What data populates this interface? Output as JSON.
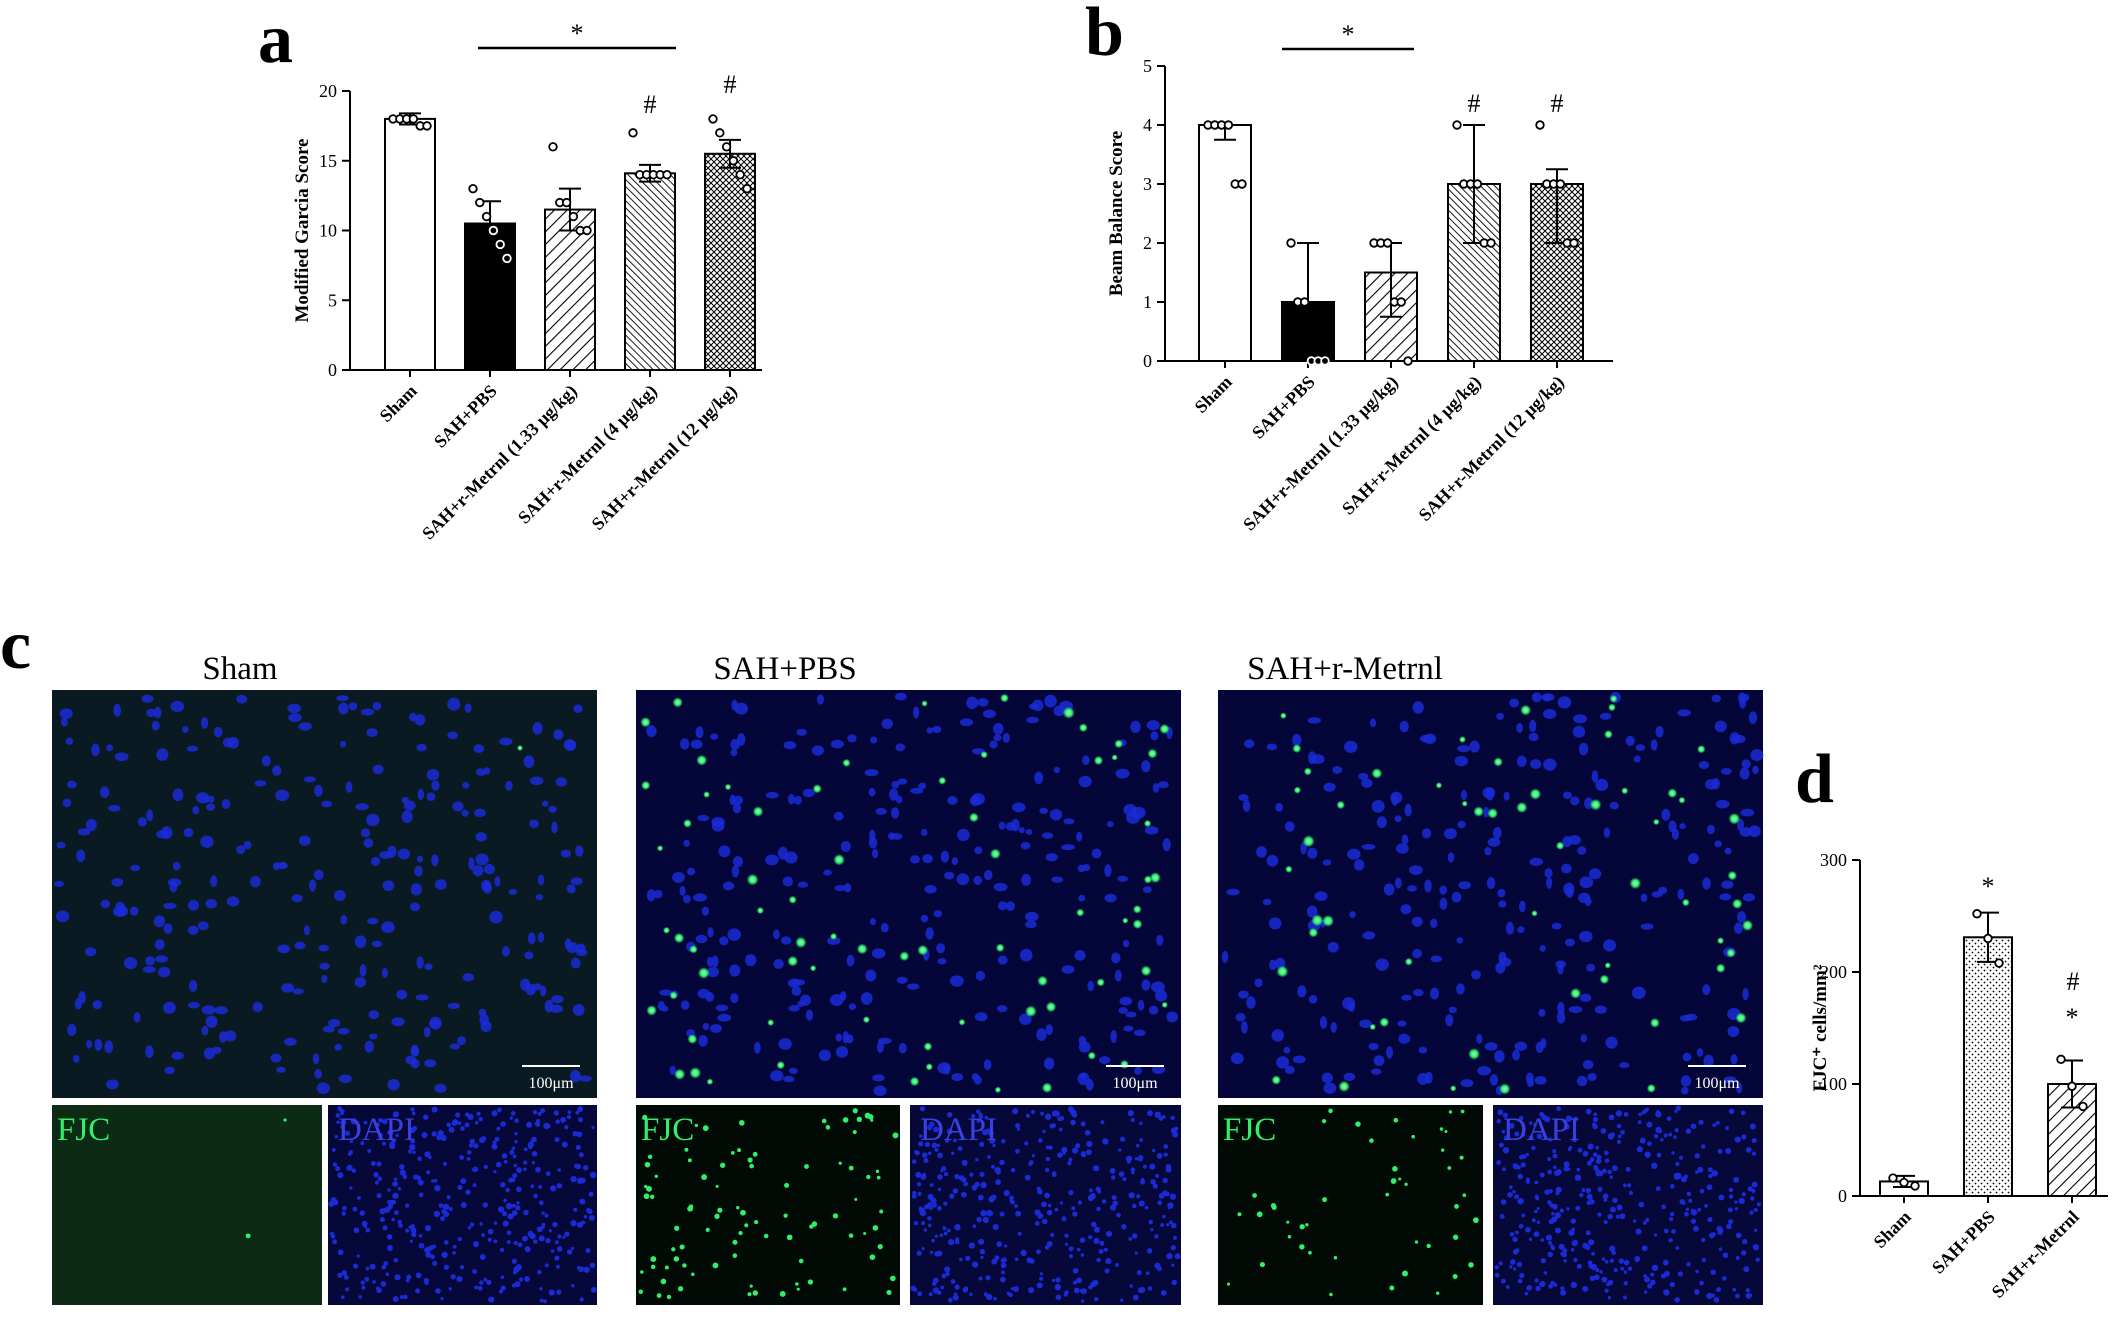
{
  "panels": {
    "a": "a",
    "b": "b",
    "c": "c",
    "d": "d"
  },
  "images": {
    "titles": [
      "Sham",
      "SAH+PBS",
      "SAH+r-Metrnl"
    ],
    "fjc_label": "FJC",
    "dapi_label": "DAPI",
    "scale_bar": "100μm",
    "colors": {
      "dapi": "#1a2bd6",
      "fjc": "#2ef06a",
      "background": "#04063a"
    }
  },
  "chart_data": [
    {
      "panel": "a",
      "type": "bar",
      "ylabel": "Modified Garcia Score",
      "ylim": [
        0,
        20
      ],
      "yticks": [
        "0",
        "5",
        "10",
        "15",
        "20"
      ],
      "categories": [
        "Sham",
        "SAH+PBS",
        "SAH+r-Metrnl (1.33 μg/kg)",
        "SAH+r-Metrnl (4 μg/kg)",
        "SAH+r-Metrnl (12 μg/kg)"
      ],
      "values": [
        18,
        10.5,
        11.5,
        14.1,
        15.5
      ],
      "errors": [
        0.4,
        1.6,
        1.5,
        0.6,
        1.0
      ],
      "points": [
        [
          18,
          18,
          18,
          18,
          17.5,
          17.5
        ],
        [
          13,
          12,
          11,
          10,
          9,
          8
        ],
        [
          16,
          12,
          12,
          11,
          10,
          10
        ],
        [
          17,
          14,
          14,
          14,
          14,
          14
        ],
        [
          18,
          17,
          16,
          15,
          14,
          13
        ]
      ],
      "patterns": [
        "white",
        "black",
        "diag-wide",
        "diag-dense",
        "cross"
      ],
      "annotations": {
        "significance": "*",
        "hash": "#",
        "hash_categories": [
          3,
          4
        ]
      }
    },
    {
      "panel": "b",
      "type": "bar",
      "ylabel": "Beam Balance Score",
      "ylim": [
        0,
        5
      ],
      "yticks": [
        "0",
        "1",
        "2",
        "3",
        "4",
        "5"
      ],
      "categories": [
        "Sham",
        "SAH+PBS",
        "SAH+r-Metrnl (1.33 μg/kg)",
        "SAH+r-Metrnl (4 μg/kg)",
        "SAH+r-Metrnl (12 μg/kg)"
      ],
      "values": [
        4,
        1,
        1.5,
        3,
        3
      ],
      "err_low": [
        0.25,
        1,
        0.75,
        1,
        1
      ],
      "err_high": [
        0,
        1,
        0.5,
        1,
        0.25
      ],
      "points": [
        [
          4,
          4,
          4,
          4,
          3,
          3
        ],
        [
          2,
          1,
          1,
          0,
          0,
          0
        ],
        [
          2,
          2,
          2,
          1,
          1,
          0
        ],
        [
          4,
          3,
          3,
          3,
          2,
          2
        ],
        [
          4,
          3,
          3,
          3,
          2,
          2
        ]
      ],
      "patterns": [
        "white",
        "black",
        "diag-wide",
        "diag-dense",
        "cross"
      ],
      "annotations": {
        "significance": "*",
        "hash": "#",
        "hash_categories": [
          3,
          4
        ]
      }
    },
    {
      "panel": "d",
      "type": "bar",
      "ylabel": "FJC⁺ cells/mm²",
      "ylim": [
        0,
        300
      ],
      "yticks": [
        "0",
        "100",
        "200",
        "300"
      ],
      "categories": [
        "Sham",
        "SAH+PBS",
        "SAH+r-Metrnl"
      ],
      "values": [
        13,
        231,
        100
      ],
      "errors": [
        5,
        22,
        21
      ],
      "points": [
        [
          16,
          12,
          9
        ],
        [
          252,
          230,
          208
        ],
        [
          122,
          98,
          80
        ]
      ],
      "patterns": [
        "white",
        "dots",
        "diag-wide"
      ],
      "annotations": {
        "star": "*",
        "hash": "#",
        "star_categories": [
          1,
          2
        ],
        "hash_categories": [
          2
        ]
      }
    }
  ]
}
